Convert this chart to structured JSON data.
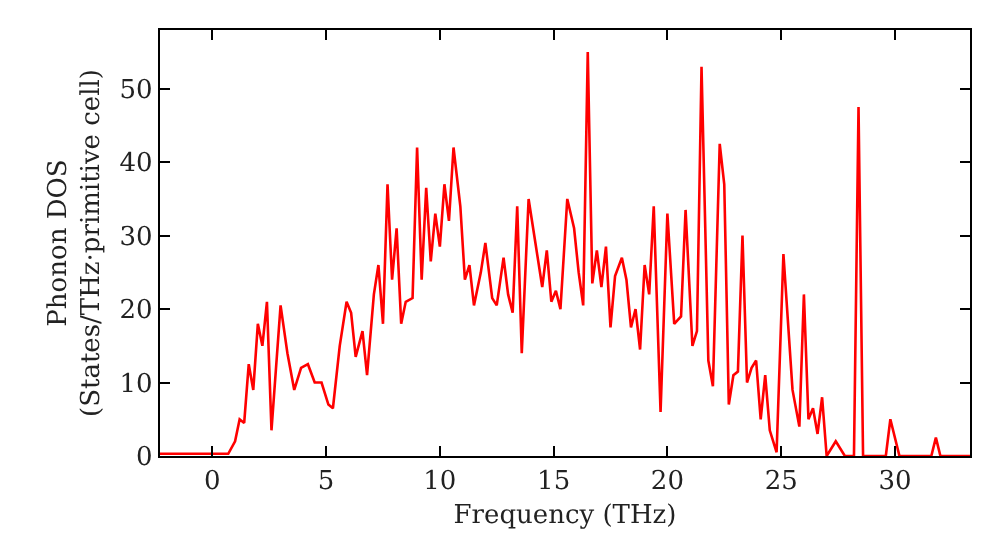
{
  "chart_data": {
    "type": "line",
    "xlabel": "Frequency (THz)",
    "ylabel": "Phonon DOS\n(States/THz·primitive cell)",
    "xlim": [
      -2.3,
      33.3
    ],
    "ylim": [
      0,
      58
    ],
    "xticks": [
      0,
      5,
      10,
      15,
      20,
      25,
      30
    ],
    "yticks": [
      0,
      10,
      20,
      30,
      40,
      50
    ],
    "marker": "none",
    "line_style": "solid",
    "x": [
      -2.3,
      0.7,
      1.0,
      1.2,
      1.4,
      1.6,
      1.8,
      2.0,
      2.2,
      2.4,
      2.6,
      3.0,
      3.3,
      3.6,
      3.9,
      4.2,
      4.5,
      4.8,
      5.1,
      5.3,
      5.6,
      5.9,
      6.1,
      6.3,
      6.6,
      6.8,
      7.1,
      7.3,
      7.5,
      7.7,
      7.9,
      8.1,
      8.3,
      8.5,
      8.8,
      9.0,
      9.2,
      9.4,
      9.6,
      9.8,
      10.0,
      10.2,
      10.4,
      10.6,
      10.9,
      11.1,
      11.3,
      11.5,
      11.8,
      12.0,
      12.3,
      12.5,
      12.8,
      13.0,
      13.2,
      13.4,
      13.6,
      13.9,
      14.2,
      14.5,
      14.7,
      14.9,
      15.1,
      15.3,
      15.6,
      15.9,
      16.1,
      16.3,
      16.5,
      16.7,
      16.9,
      17.1,
      17.3,
      17.5,
      17.7,
      18.0,
      18.2,
      18.4,
      18.6,
      18.8,
      19.0,
      19.2,
      19.4,
      19.7,
      20.0,
      20.3,
      20.6,
      20.8,
      21.1,
      21.3,
      21.5,
      21.8,
      22.0,
      22.3,
      22.5,
      22.7,
      22.9,
      23.1,
      23.3,
      23.5,
      23.7,
      23.9,
      24.1,
      24.3,
      24.5,
      24.8,
      25.1,
      25.5,
      25.8,
      26.0,
      26.2,
      26.4,
      26.6,
      26.8,
      27.0,
      27.4,
      27.8,
      28.2,
      28.4,
      28.6,
      29.6,
      29.8,
      30.2,
      31.6,
      31.8,
      32.0,
      33.3
    ],
    "series": [
      {
        "color": "#ff0000",
        "values": [
          0.3,
          0.3,
          2,
          5,
          4.5,
          12.5,
          9,
          18,
          15,
          21,
          3.5,
          20.5,
          14,
          9,
          12,
          12.5,
          10,
          10,
          7,
          6.5,
          15,
          21,
          19.5,
          13.5,
          17,
          11,
          22,
          26,
          18,
          37,
          24,
          31,
          18,
          21,
          21.5,
          42,
          24,
          36.5,
          26.5,
          33,
          28.5,
          37,
          32,
          42,
          34,
          24,
          26,
          20.5,
          25,
          29,
          21.5,
          20.5,
          27,
          22,
          19.5,
          34,
          14,
          35,
          29,
          23,
          28,
          21,
          22.5,
          20,
          35,
          31,
          25,
          20.5,
          55,
          23.5,
          28,
          23,
          28.5,
          17.5,
          24.5,
          27,
          24,
          17.5,
          20,
          14.5,
          26,
          22,
          34,
          6,
          33,
          18,
          19,
          33.5,
          15,
          17,
          53,
          13,
          9.5,
          42.5,
          37,
          7,
          11,
          11.5,
          30,
          10,
          12,
          13,
          5,
          11,
          3.5,
          0.5,
          27.5,
          9,
          4,
          22,
          5,
          6.5,
          3,
          8,
          0,
          2,
          0,
          0,
          47.5,
          0,
          0,
          5,
          0,
          0,
          2.5,
          0,
          0
        ]
      }
    ]
  }
}
